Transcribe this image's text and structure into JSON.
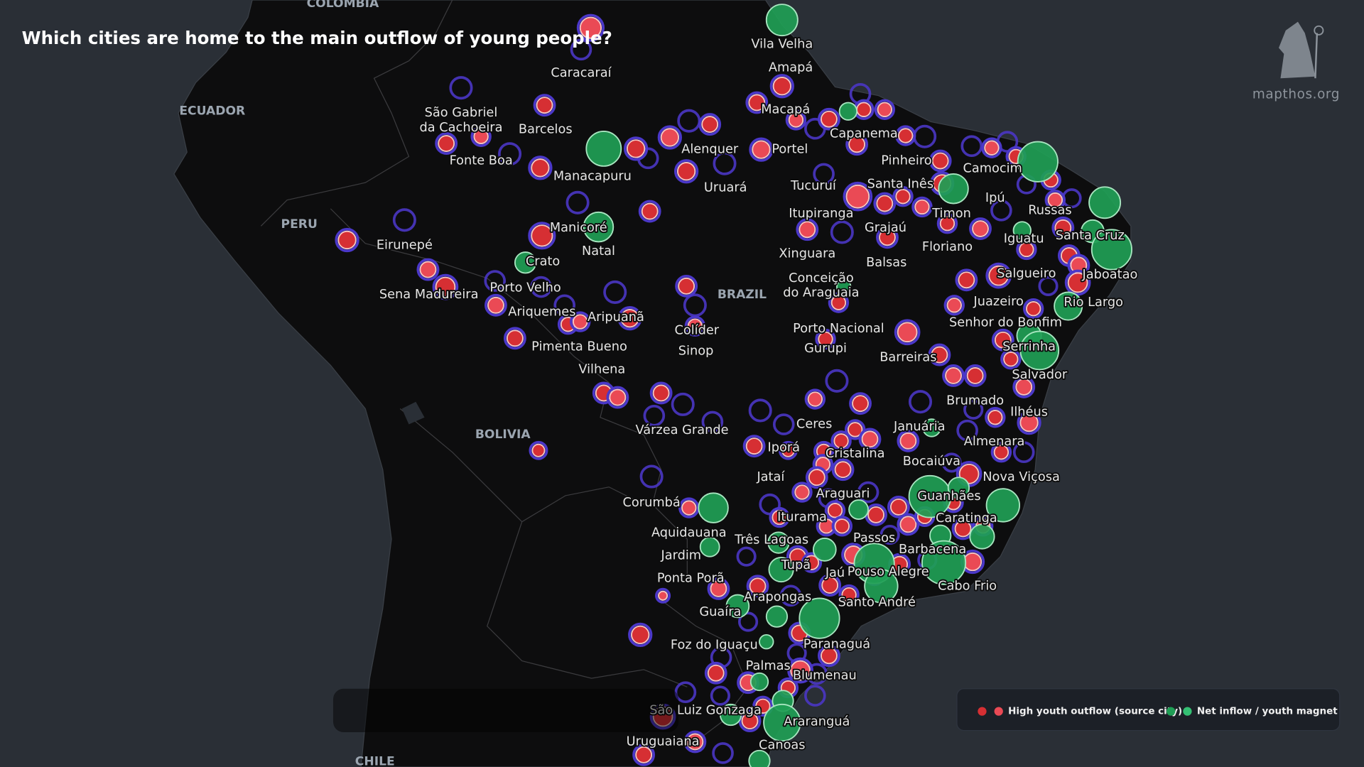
{
  "title": "Which cities are home to the main outflow of young people?",
  "brand": "mapthos.org",
  "countries": [
    "COLOMBIA",
    "ECUADOR",
    "PERU",
    "BOLIVIA",
    "BRAZIL",
    "CHILE"
  ],
  "cities": [
    "Vila Velha",
    "Amapá",
    "Caracaraí",
    "Macapá",
    "Capanema",
    [
      "São Gabriel",
      "da Cachoeira"
    ],
    "Barcelos",
    "Fonte Boa",
    "Manacapuru",
    "Alenquer",
    "Portel",
    "Uruará",
    "Pinheiro",
    "Camocim",
    "Santa Inês",
    "Tucuruí",
    "Ipú",
    "Itupiranga",
    "Timon",
    "Russas",
    "Manicoré",
    "Grajaú",
    "Iguatu",
    "Santa Cruz",
    "Natal",
    "Floriano",
    "Xinguara",
    "Eirunepé",
    "Crato",
    "Balsas",
    "Jaboatao",
    [
      "Conceição",
      "do Araguaia"
    ],
    "Salgueiro",
    "Porto Velho",
    "Sena Madureira",
    "Juazeiro",
    "Rio Largo",
    "Ariquemes",
    "Aripuanã",
    "Senhor do Bonfim",
    "Porto Nacional",
    "Colíder",
    "Pimenta Bueno",
    "Gurupi",
    "Serrinha",
    "Sinop",
    "Barreiras",
    "Vilhena",
    "Salvador",
    "Brumado",
    "Ilhéus",
    "Ceres",
    "Januária",
    "Várzea Grande",
    "Almenara",
    "Iporá",
    "Cristalina",
    "Bocaiúva",
    "Jataí",
    "Nova Viçosa",
    "Araguari",
    "Guanhães",
    "Corumbá",
    "Caratinga",
    "Iturama",
    "Aquidauana",
    "Passos",
    "Três Lagoas",
    "Barbacena",
    "Jardim",
    "Tupã",
    "Jaú",
    "Pouso Alegre",
    "Ponta Porã",
    "Cabo Frio",
    "Arapongas",
    "Santo André",
    "Guaíra",
    "Paranaguá",
    "Foz do Iguaçu",
    "Palmas",
    "Blumenau",
    "São Luiz Gonzaga",
    "Araranguá",
    "Uruguaiana",
    "Canoas"
  ],
  "legend": {
    "items": [
      {
        "label": "High youth outflow (source city)",
        "colors": [
          "#d62f33",
          "#ea4a55"
        ]
      },
      {
        "label": "Net inflow / youth magnet",
        "colors": [
          "#1f9e55",
          "#34c073"
        ]
      }
    ]
  }
}
